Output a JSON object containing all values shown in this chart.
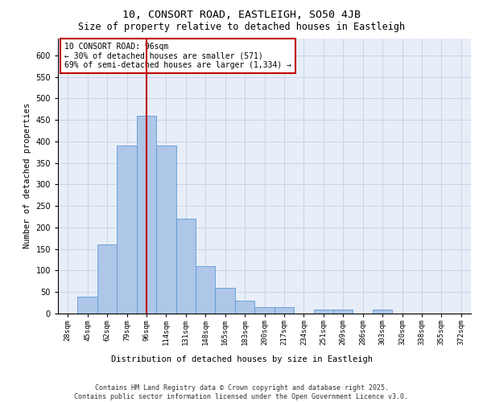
{
  "title_line1": "10, CONSORT ROAD, EASTLEIGH, SO50 4JB",
  "title_line2": "Size of property relative to detached houses in Eastleigh",
  "xlabel": "Distribution of detached houses by size in Eastleigh",
  "ylabel": "Number of detached properties",
  "bins": [
    "28sqm",
    "45sqm",
    "62sqm",
    "79sqm",
    "96sqm",
    "114sqm",
    "131sqm",
    "148sqm",
    "165sqm",
    "183sqm",
    "200sqm",
    "217sqm",
    "234sqm",
    "251sqm",
    "269sqm",
    "286sqm",
    "303sqm",
    "320sqm",
    "338sqm",
    "355sqm",
    "372sqm"
  ],
  "values": [
    0,
    40,
    160,
    390,
    460,
    390,
    220,
    110,
    60,
    30,
    15,
    15,
    0,
    10,
    10,
    0,
    10,
    0,
    0,
    0,
    0
  ],
  "bar_color": "#aec6e8",
  "bar_edge_color": "#5b9bd5",
  "highlight_color": "#c00000",
  "property_label": "10 CONSORT ROAD: 96sqm",
  "pct_smaller": "30% of detached houses are smaller (571)",
  "pct_larger": "69% of semi-detached houses are larger (1,334)",
  "annotation_box_color": "#ffffff",
  "annotation_box_edge": "#c00000",
  "vline_x_bin_index": 4,
  "grid_color": "#c8d4e8",
  "background_color": "#e8eef8",
  "footer": "Contains HM Land Registry data © Crown copyright and database right 2025.\nContains public sector information licensed under the Open Government Licence v3.0.",
  "ylim": [
    0,
    640
  ],
  "yticks": [
    0,
    50,
    100,
    150,
    200,
    250,
    300,
    350,
    400,
    450,
    500,
    550,
    600
  ]
}
